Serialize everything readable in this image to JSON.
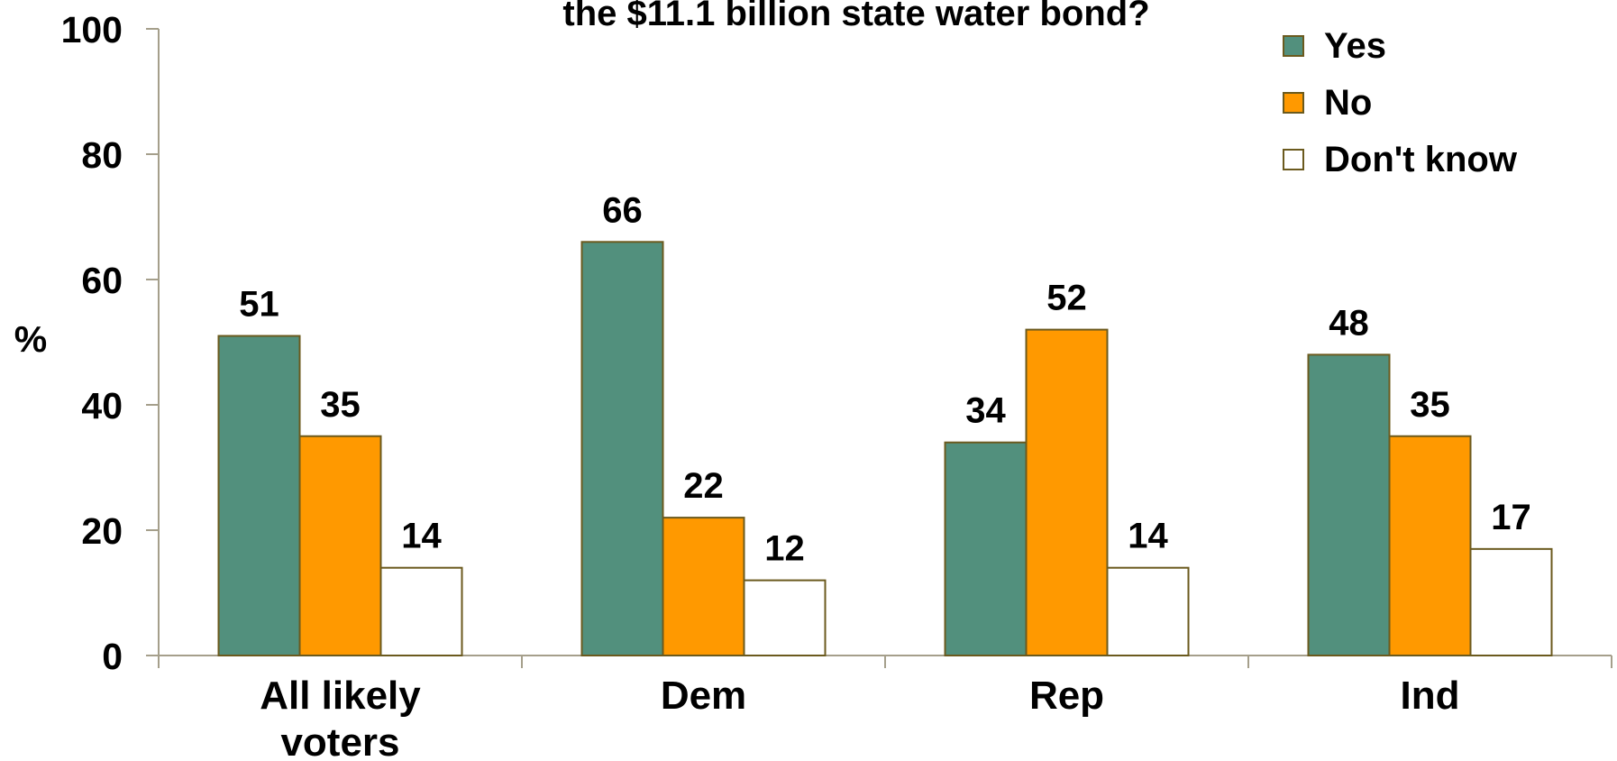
{
  "chart_data": {
    "type": "bar",
    "title": "the $11.1 billion state water bond?",
    "ylabel": "%",
    "xlabel": "",
    "ylim": [
      0,
      100
    ],
    "yticks": [
      0,
      20,
      40,
      60,
      80,
      100
    ],
    "categories": [
      [
        "All likely",
        "voters"
      ],
      [
        "Dem"
      ],
      [
        "Rep"
      ],
      [
        "Ind"
      ]
    ],
    "series": [
      {
        "name": "Yes",
        "color": "#52907D",
        "values": [
          51,
          66,
          34,
          48
        ]
      },
      {
        "name": "No",
        "color": "#FF9900",
        "values": [
          35,
          22,
          52,
          35
        ]
      },
      {
        "name": "Don't know",
        "color": "#FFFFFF",
        "values": [
          14,
          12,
          14,
          17
        ]
      }
    ],
    "bar_edge_color": "#6B5A1E",
    "axis_color": "#A59F8B",
    "legend_position": "top-right",
    "grid": false
  }
}
